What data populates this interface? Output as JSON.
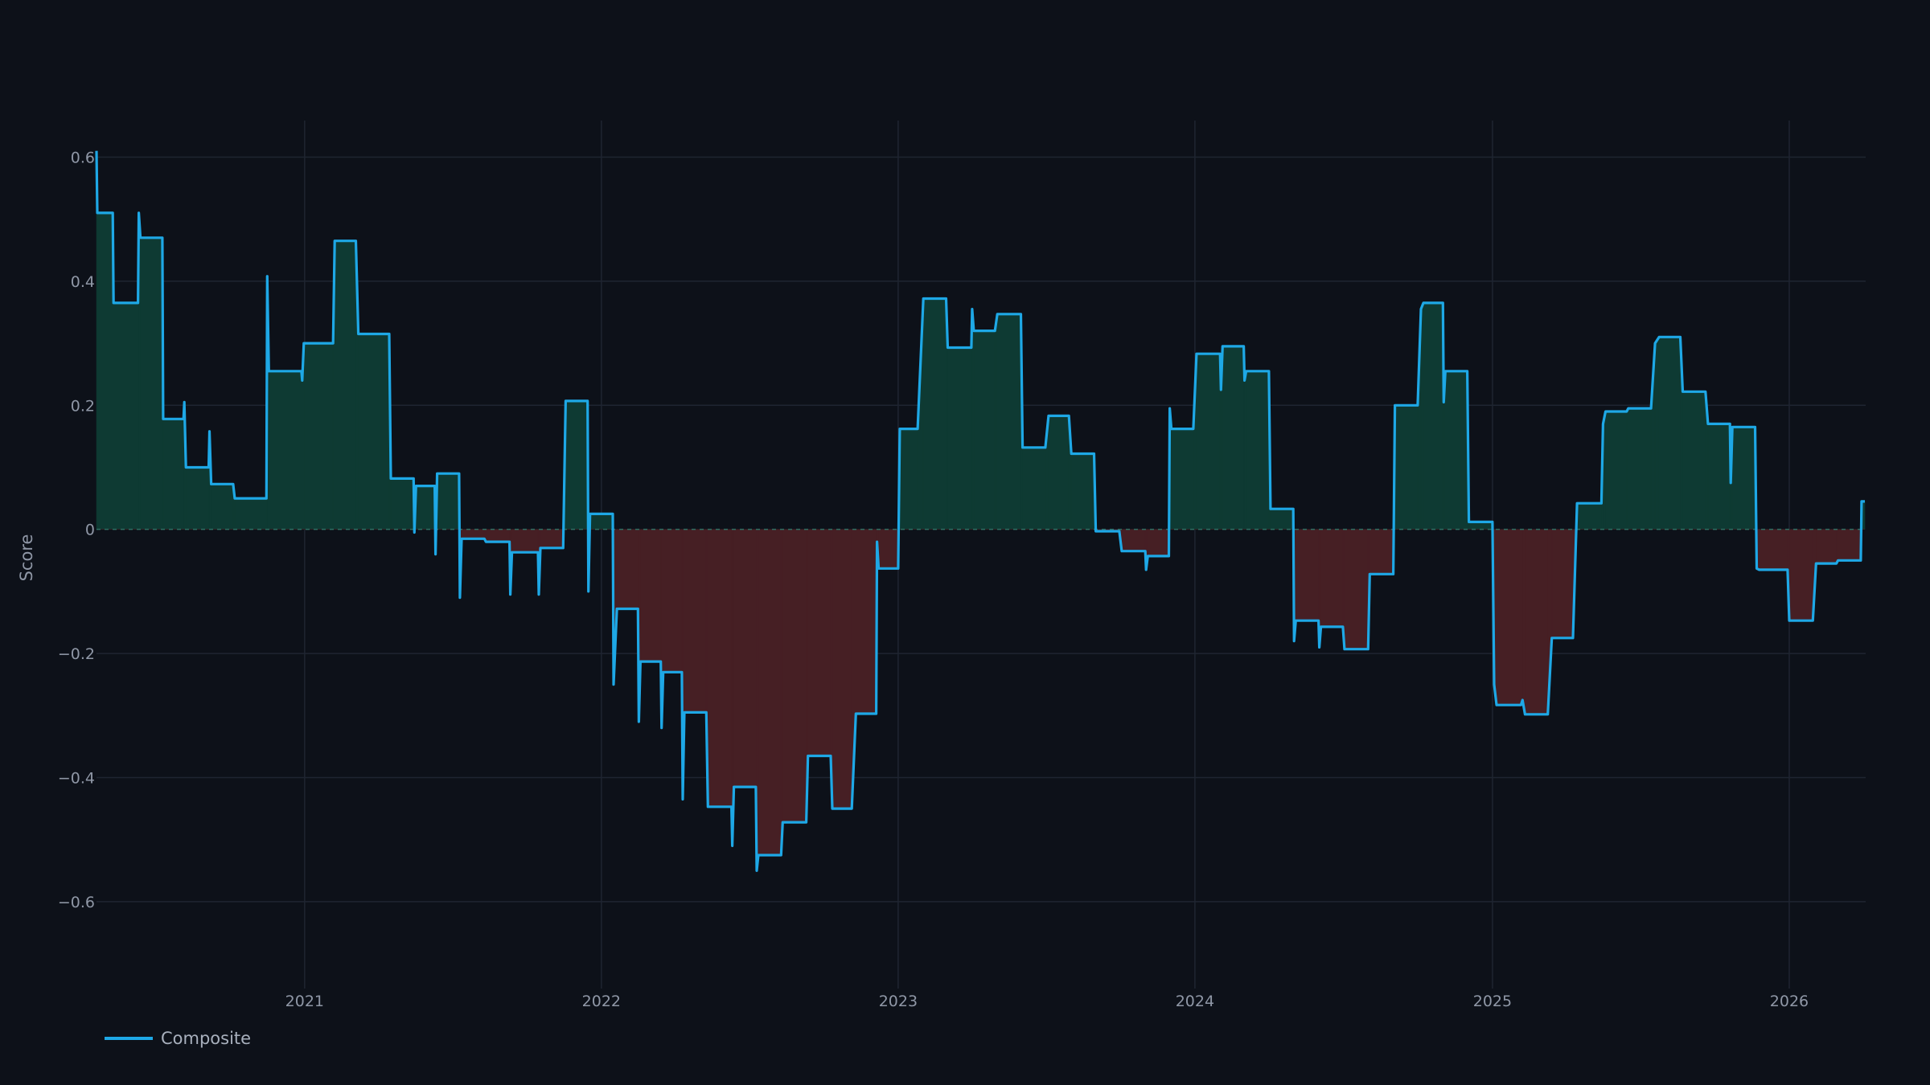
{
  "chart_data": {
    "type": "area",
    "ylabel": "Score",
    "ylim": [
      -0.74,
      0.62
    ],
    "xlim": [
      "2020-04-20",
      "2026-04-05"
    ],
    "y_ticks": [
      {
        "value": 0.6,
        "label": "0.6"
      },
      {
        "value": 0.4,
        "label": "0.4"
      },
      {
        "value": 0.2,
        "label": "0.2"
      },
      {
        "value": 0,
        "label": "0"
      },
      {
        "value": -0.2,
        "label": "−0.2"
      },
      {
        "value": -0.4,
        "label": "−0.4"
      },
      {
        "value": -0.6,
        "label": "−0.6"
      }
    ],
    "x_ticks": [
      {
        "date": "2021-01-01",
        "label": "2021"
      },
      {
        "date": "2022-01-01",
        "label": "2022"
      },
      {
        "date": "2023-01-01",
        "label": "2023"
      },
      {
        "date": "2024-01-01",
        "label": "2024"
      },
      {
        "date": "2025-01-01",
        "label": "2025"
      },
      {
        "date": "2026-01-01",
        "label": "2026"
      }
    ],
    "grid": true,
    "zero_line": "dashed",
    "legend_position": "bottom-left",
    "colors": {
      "line": "#1ea8e6",
      "positive_fill": "#0e3a33",
      "negative_fill": "#461f24",
      "grid": "#1f2531",
      "background": "#0d1119"
    },
    "series": [
      {
        "name": "Composite",
        "points": [
          [
            "2020-04-20",
            0.61
          ],
          [
            "2020-04-21",
            0.51
          ],
          [
            "2020-05-10",
            0.51
          ],
          [
            "2020-05-11",
            0.365
          ],
          [
            "2020-06-10",
            0.365
          ],
          [
            "2020-06-11",
            0.51
          ],
          [
            "2020-06-13",
            0.47
          ],
          [
            "2020-07-10",
            0.47
          ],
          [
            "2020-07-11",
            0.178
          ],
          [
            "2020-08-05",
            0.178
          ],
          [
            "2020-08-06",
            0.205
          ],
          [
            "2020-08-08",
            0.1
          ],
          [
            "2020-09-05",
            0.1
          ],
          [
            "2020-09-06",
            0.158
          ],
          [
            "2020-09-08",
            0.073
          ],
          [
            "2020-10-05",
            0.073
          ],
          [
            "2020-10-07",
            0.05
          ],
          [
            "2020-11-15",
            0.05
          ],
          [
            "2020-11-16",
            0.408
          ],
          [
            "2020-11-18",
            0.255
          ],
          [
            "2020-12-28",
            0.255
          ],
          [
            "2020-12-29",
            0.24
          ],
          [
            "2020-12-31",
            0.3
          ],
          [
            "2021-02-05",
            0.3
          ],
          [
            "2021-02-07",
            0.465
          ],
          [
            "2021-03-05",
            0.465
          ],
          [
            "2021-03-08",
            0.315
          ],
          [
            "2021-04-15",
            0.315
          ],
          [
            "2021-04-17",
            0.082
          ],
          [
            "2021-05-15",
            0.082
          ],
          [
            "2021-05-16",
            -0.005
          ],
          [
            "2021-05-18",
            0.07
          ],
          [
            "2021-06-10",
            0.07
          ],
          [
            "2021-06-11",
            -0.04
          ],
          [
            "2021-06-13",
            0.09
          ],
          [
            "2021-07-10",
            0.09
          ],
          [
            "2021-07-11",
            -0.11
          ],
          [
            "2021-07-13",
            -0.015
          ],
          [
            "2021-08-10",
            -0.015
          ],
          [
            "2021-08-12",
            -0.02
          ],
          [
            "2021-09-10",
            -0.02
          ],
          [
            "2021-09-11",
            -0.105
          ],
          [
            "2021-09-13",
            -0.037
          ],
          [
            "2021-10-15",
            -0.037
          ],
          [
            "2021-10-16",
            -0.105
          ],
          [
            "2021-10-18",
            -0.03
          ],
          [
            "2021-11-15",
            -0.03
          ],
          [
            "2021-11-18",
            0.207
          ],
          [
            "2021-12-15",
            0.207
          ],
          [
            "2021-12-16",
            -0.1
          ],
          [
            "2021-12-18",
            0.025
          ],
          [
            "2022-01-15",
            0.025
          ],
          [
            "2022-01-16",
            -0.25
          ],
          [
            "2022-01-20",
            -0.128
          ],
          [
            "2022-02-15",
            -0.128
          ],
          [
            "2022-02-16",
            -0.31
          ],
          [
            "2022-02-18",
            -0.213
          ],
          [
            "2022-03-15",
            -0.213
          ],
          [
            "2022-03-16",
            -0.32
          ],
          [
            "2022-03-18",
            -0.23
          ],
          [
            "2022-04-10",
            -0.23
          ],
          [
            "2022-04-11",
            -0.435
          ],
          [
            "2022-04-13",
            -0.295
          ],
          [
            "2022-05-10",
            -0.295
          ],
          [
            "2022-05-12",
            -0.447
          ],
          [
            "2022-06-10",
            -0.447
          ],
          [
            "2022-06-11",
            -0.51
          ],
          [
            "2022-06-13",
            -0.415
          ],
          [
            "2022-07-10",
            -0.415
          ],
          [
            "2022-07-11",
            -0.55
          ],
          [
            "2022-07-13",
            -0.525
          ],
          [
            "2022-08-10",
            -0.525
          ],
          [
            "2022-08-12",
            -0.472
          ],
          [
            "2022-09-10",
            -0.472
          ],
          [
            "2022-09-12",
            -0.365
          ],
          [
            "2022-10-10",
            -0.365
          ],
          [
            "2022-10-12",
            -0.45
          ],
          [
            "2022-11-05",
            -0.45
          ],
          [
            "2022-11-10",
            -0.297
          ],
          [
            "2022-12-05",
            -0.297
          ],
          [
            "2022-12-06",
            -0.02
          ],
          [
            "2022-12-08",
            -0.063
          ],
          [
            "2023-01-01",
            -0.063
          ],
          [
            "2023-01-03",
            0.162
          ],
          [
            "2023-01-25",
            0.162
          ],
          [
            "2023-02-01",
            0.372
          ],
          [
            "2023-03-01",
            0.372
          ],
          [
            "2023-03-03",
            0.293
          ],
          [
            "2023-04-01",
            0.293
          ],
          [
            "2023-04-02",
            0.355
          ],
          [
            "2023-04-04",
            0.32
          ],
          [
            "2023-04-30",
            0.32
          ],
          [
            "2023-05-03",
            0.347
          ],
          [
            "2023-06-01",
            0.347
          ],
          [
            "2023-06-03",
            0.132
          ],
          [
            "2023-07-01",
            0.132
          ],
          [
            "2023-07-05",
            0.183
          ],
          [
            "2023-07-30",
            0.183
          ],
          [
            "2023-08-02",
            0.122
          ],
          [
            "2023-08-30",
            0.122
          ],
          [
            "2023-09-01",
            -0.003
          ],
          [
            "2023-09-30",
            -0.003
          ],
          [
            "2023-10-03",
            -0.035
          ],
          [
            "2023-11-01",
            -0.035
          ],
          [
            "2023-11-02",
            -0.065
          ],
          [
            "2023-11-04",
            -0.043
          ],
          [
            "2023-11-30",
            -0.043
          ],
          [
            "2023-12-01",
            0.195
          ],
          [
            "2023-12-03",
            0.162
          ],
          [
            "2023-12-30",
            0.162
          ],
          [
            "2024-01-03",
            0.283
          ],
          [
            "2024-02-01",
            0.283
          ],
          [
            "2024-02-02",
            0.225
          ],
          [
            "2024-02-04",
            0.295
          ],
          [
            "2024-03-01",
            0.295
          ],
          [
            "2024-03-02",
            0.24
          ],
          [
            "2024-03-04",
            0.255
          ],
          [
            "2024-04-01",
            0.255
          ],
          [
            "2024-04-03",
            0.033
          ],
          [
            "2024-05-01",
            0.033
          ],
          [
            "2024-05-02",
            -0.18
          ],
          [
            "2024-05-04",
            -0.147
          ],
          [
            "2024-06-01",
            -0.147
          ],
          [
            "2024-06-02",
            -0.19
          ],
          [
            "2024-06-04",
            -0.157
          ],
          [
            "2024-07-01",
            -0.157
          ],
          [
            "2024-07-03",
            -0.193
          ],
          [
            "2024-08-01",
            -0.193
          ],
          [
            "2024-08-03",
            -0.072
          ],
          [
            "2024-09-01",
            -0.072
          ],
          [
            "2024-09-03",
            0.2
          ],
          [
            "2024-10-01",
            0.2
          ],
          [
            "2024-10-05",
            0.355
          ],
          [
            "2024-10-08",
            0.365
          ],
          [
            "2024-11-01",
            0.365
          ],
          [
            "2024-11-02",
            0.205
          ],
          [
            "2024-11-04",
            0.255
          ],
          [
            "2024-12-01",
            0.255
          ],
          [
            "2024-12-03",
            0.012
          ],
          [
            "2025-01-01",
            0.012
          ],
          [
            "2025-01-03",
            -0.25
          ],
          [
            "2025-01-06",
            -0.283
          ],
          [
            "2025-02-05",
            -0.283
          ],
          [
            "2025-02-07",
            -0.275
          ],
          [
            "2025-02-10",
            -0.298
          ],
          [
            "2025-03-10",
            -0.298
          ],
          [
            "2025-03-15",
            -0.175
          ],
          [
            "2025-04-10",
            -0.175
          ],
          [
            "2025-04-15",
            0.042
          ],
          [
            "2025-05-15",
            0.042
          ],
          [
            "2025-05-17",
            0.17
          ],
          [
            "2025-05-20",
            0.19
          ],
          [
            "2025-06-15",
            0.19
          ],
          [
            "2025-06-17",
            0.195
          ],
          [
            "2025-07-15",
            0.195
          ],
          [
            "2025-07-20",
            0.3
          ],
          [
            "2025-07-25",
            0.31
          ],
          [
            "2025-08-20",
            0.31
          ],
          [
            "2025-08-23",
            0.222
          ],
          [
            "2025-09-20",
            0.222
          ],
          [
            "2025-09-23",
            0.17
          ],
          [
            "2025-10-20",
            0.17
          ],
          [
            "2025-10-21",
            0.075
          ],
          [
            "2025-10-23",
            0.165
          ],
          [
            "2025-11-20",
            0.165
          ],
          [
            "2025-11-22",
            -0.063
          ],
          [
            "2025-11-25",
            -0.065
          ],
          [
            "2025-12-30",
            -0.065
          ],
          [
            "2026-01-01",
            -0.147
          ],
          [
            "2026-01-30",
            -0.147
          ],
          [
            "2026-02-03",
            -0.055
          ],
          [
            "2026-02-28",
            -0.055
          ],
          [
            "2026-03-02",
            -0.05
          ],
          [
            "2026-03-30",
            -0.05
          ],
          [
            "2026-03-31",
            0.045
          ],
          [
            "2026-04-04",
            0.045
          ]
        ]
      }
    ]
  }
}
